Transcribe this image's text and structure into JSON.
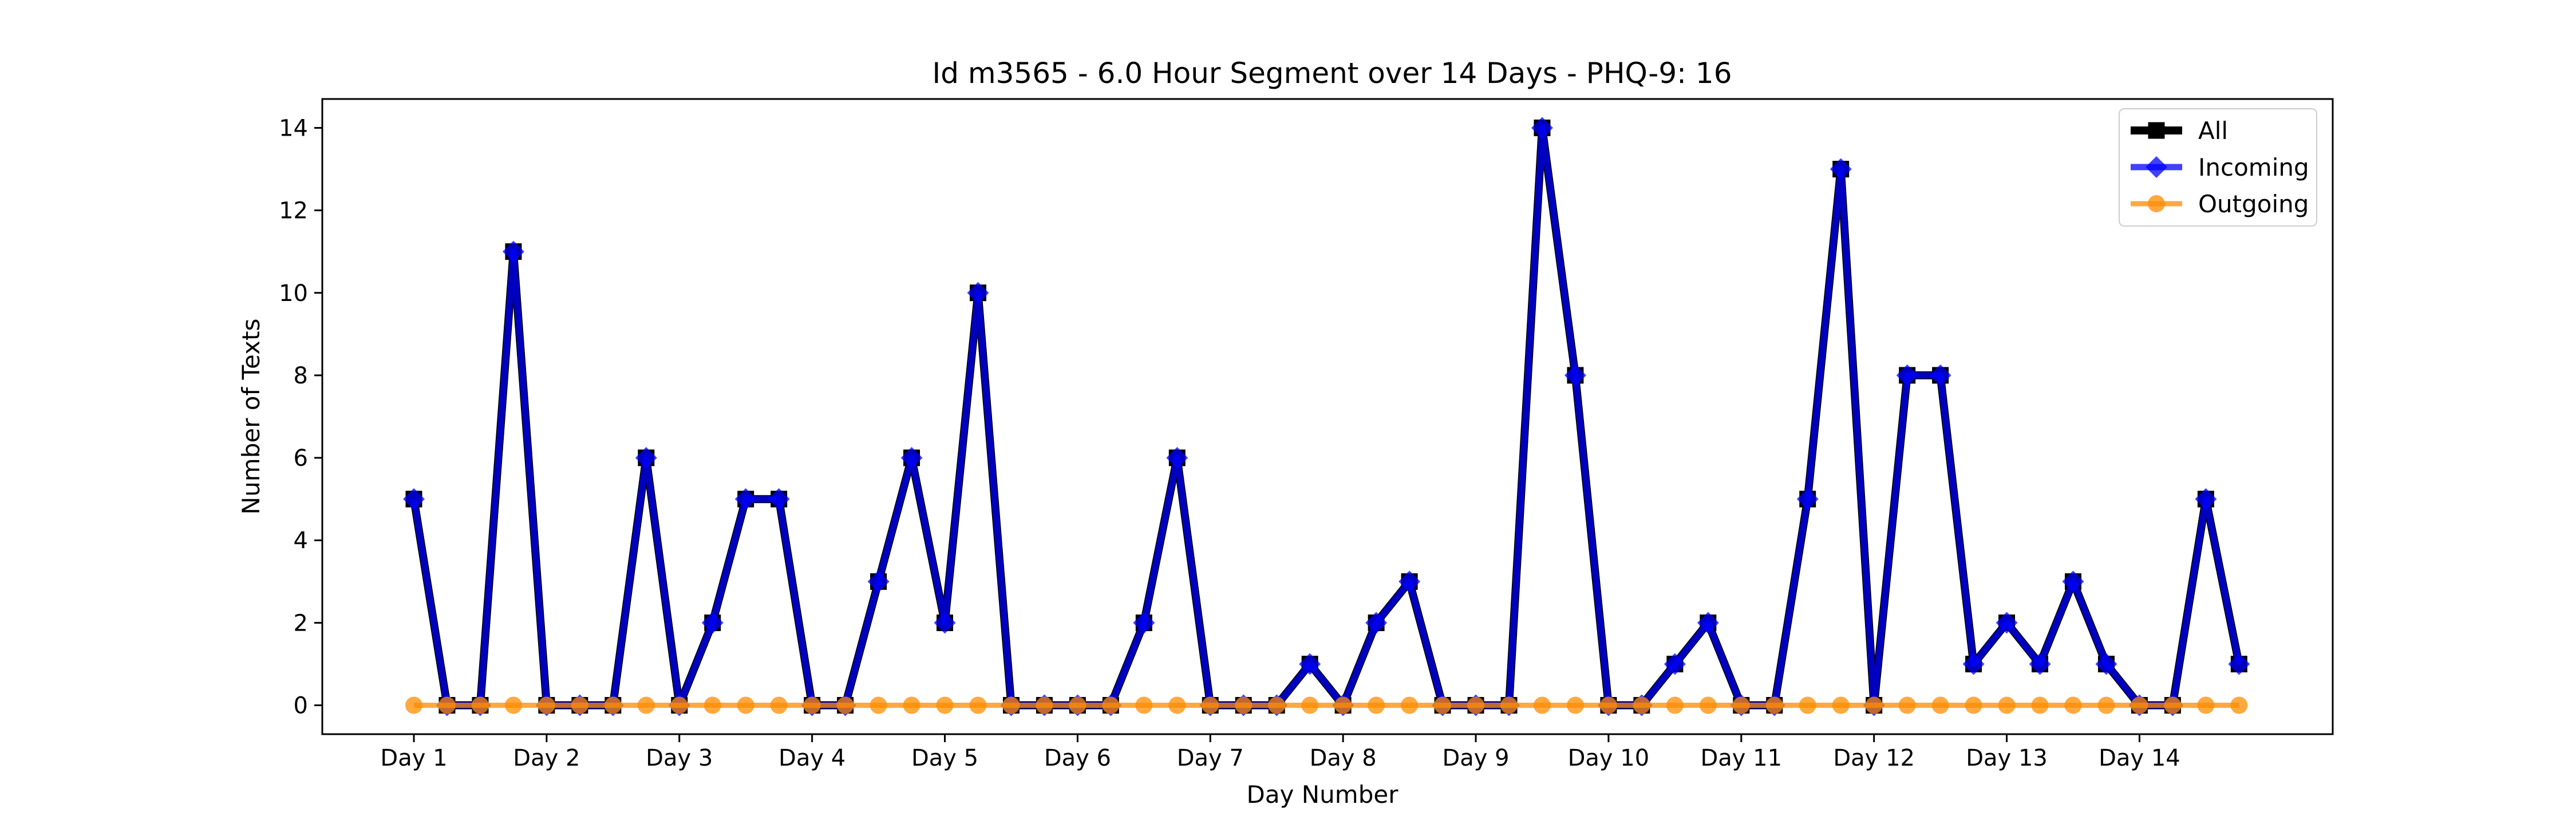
{
  "chart_data": {
    "type": "line",
    "title": "Id m3565 - 6.0 Hour Segment over 14 Days - PHQ-9: 16",
    "xlabel": "Day Number",
    "ylabel": "Number of Texts",
    "x_ticks": [
      "Day 1",
      "Day 2",
      "Day 3",
      "Day 4",
      "Day 5",
      "Day 6",
      "Day 7",
      "Day 8",
      "Day 9",
      "Day 10",
      "Day 11",
      "Day 12",
      "Day 13",
      "Day 14"
    ],
    "y_ticks": [
      0,
      2,
      4,
      6,
      8,
      10,
      12,
      14
    ],
    "ylim": [
      -0.7,
      14.7
    ],
    "segments_per_day": 4,
    "grid": false,
    "legend_position": "top-right",
    "series": [
      {
        "name": "All",
        "color": "#000000",
        "marker": "square",
        "values": [
          5,
          0,
          0,
          11,
          0,
          0,
          0,
          6,
          0,
          2,
          5,
          5,
          0,
          0,
          3,
          6,
          2,
          10,
          0,
          0,
          0,
          0,
          2,
          6,
          0,
          0,
          0,
          1,
          0,
          2,
          3,
          0,
          0,
          0,
          14,
          8,
          0,
          0,
          1,
          2,
          0,
          0,
          5,
          13,
          0,
          8,
          8,
          1,
          2,
          1,
          3,
          1,
          0,
          0,
          5,
          1
        ]
      },
      {
        "name": "Incoming",
        "color": "#0000ff",
        "marker": "diamond",
        "values": [
          5,
          0,
          0,
          11,
          0,
          0,
          0,
          6,
          0,
          2,
          5,
          5,
          0,
          0,
          3,
          6,
          2,
          10,
          0,
          0,
          0,
          0,
          2,
          6,
          0,
          0,
          0,
          1,
          0,
          2,
          3,
          0,
          0,
          0,
          14,
          8,
          0,
          0,
          1,
          2,
          0,
          0,
          5,
          13,
          0,
          8,
          8,
          1,
          2,
          1,
          3,
          1,
          0,
          0,
          5,
          1
        ]
      },
      {
        "name": "Outgoing",
        "color": "#ff8c00",
        "marker": "circle",
        "values": [
          0,
          0,
          0,
          0,
          0,
          0,
          0,
          0,
          0,
          0,
          0,
          0,
          0,
          0,
          0,
          0,
          0,
          0,
          0,
          0,
          0,
          0,
          0,
          0,
          0,
          0,
          0,
          0,
          0,
          0,
          0,
          0,
          0,
          0,
          0,
          0,
          0,
          0,
          0,
          0,
          0,
          0,
          0,
          0,
          0,
          0,
          0,
          0,
          0,
          0,
          0,
          0,
          0,
          0,
          0,
          0
        ]
      }
    ]
  }
}
